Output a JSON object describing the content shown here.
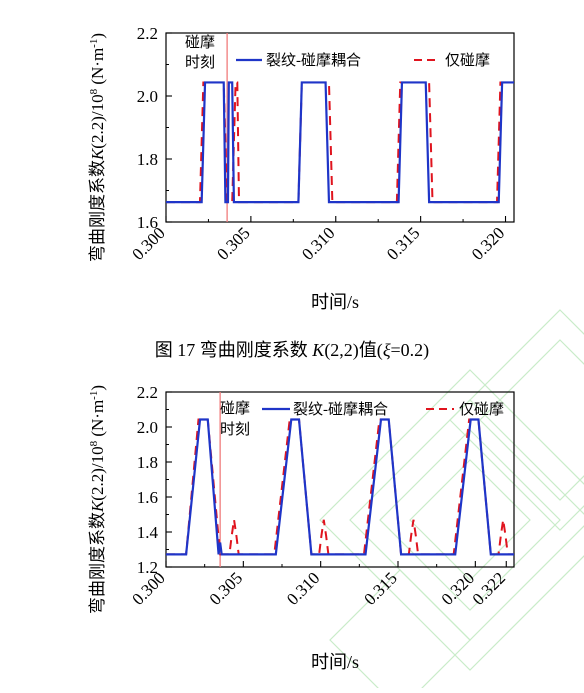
{
  "caption": {
    "prefix": "图 17  弯曲刚度系数 ",
    "k_symbol": "K",
    "k_args": "(2,2)",
    "value_word": "值(",
    "xi_symbol": "ξ",
    "xi_value": "=0.2)"
  },
  "colors": {
    "crack_rub": "#1f35c8",
    "rub_only": "#e0141e",
    "rub_marker": "#f07a7a",
    "watermark": "#c9ecc9"
  },
  "chart_data": [
    {
      "type": "line",
      "ylabel_main": "弯曲刚度系数",
      "ylabel_symbol": "K",
      "ylabel_rest": "(2.2)/10",
      "ylabel_exp": "8",
      "ylabel_unit": " (N·m",
      "ylabel_unit_exp": "-1",
      "ylabel_close": ")",
      "xlabel": "时间/s",
      "xlim": [
        0.3,
        0.3205
      ],
      "ylim": [
        1.6,
        2.2
      ],
      "xticks": [
        "0.300",
        "0.305",
        "0.310",
        "0.315",
        "0.320"
      ],
      "xtick_values": [
        0.3,
        0.305,
        0.31,
        0.315,
        0.32
      ],
      "yticks": [
        "1.6",
        "1.8",
        "2.0",
        "2.2"
      ],
      "ytick_values": [
        1.6,
        1.8,
        2.0,
        2.2
      ],
      "rub_moment_label": [
        "碰摩",
        "时刻"
      ],
      "rub_moment_x": 0.3036,
      "legend": [
        "裂纹-碰摩耦合",
        "仅碰摩"
      ],
      "series": [
        {
          "name": "裂纹-碰摩耦合",
          "style": "solid",
          "points": [
            [
              0.3,
              1.663
            ],
            [
              0.3021,
              1.663
            ],
            [
              0.3023,
              2.043
            ],
            [
              0.3034,
              2.043
            ],
            [
              0.3035,
              1.663
            ],
            [
              0.30365,
              1.663
            ],
            [
              0.3037,
              2.043
            ],
            [
              0.3039,
              2.043
            ],
            [
              0.304,
              1.663
            ],
            [
              0.3078,
              1.663
            ],
            [
              0.308,
              2.043
            ],
            [
              0.3094,
              2.043
            ],
            [
              0.3096,
              1.663
            ],
            [
              0.3137,
              1.663
            ],
            [
              0.3139,
              2.043
            ],
            [
              0.3153,
              2.043
            ],
            [
              0.3155,
              1.663
            ],
            [
              0.3196,
              1.663
            ],
            [
              0.3198,
              2.043
            ],
            [
              0.3205,
              2.043
            ]
          ]
        },
        {
          "name": "仅碰摩",
          "style": "dashed",
          "points": [
            [
              0.3,
              1.663
            ],
            [
              0.302,
              1.663
            ],
            [
              0.3022,
              2.043
            ],
            [
              0.3034,
              2.043
            ],
            [
              0.3036,
              1.663
            ],
            [
              0.3039,
              1.663
            ],
            [
              0.3041,
              2.043
            ],
            [
              0.3042,
              2.043
            ],
            [
              0.3043,
              1.663
            ],
            [
              0.3078,
              1.663
            ],
            [
              0.308,
              2.043
            ],
            [
              0.3096,
              2.043
            ],
            [
              0.3098,
              1.663
            ],
            [
              0.3136,
              1.663
            ],
            [
              0.3138,
              2.043
            ],
            [
              0.3155,
              2.043
            ],
            [
              0.3157,
              1.663
            ],
            [
              0.3195,
              1.663
            ],
            [
              0.3197,
              2.043
            ],
            [
              0.3205,
              2.043
            ]
          ]
        }
      ]
    },
    {
      "type": "line",
      "ylabel_main": "弯曲刚度系数",
      "ylabel_symbol": "K",
      "ylabel_rest": "(2.2)/10",
      "ylabel_exp": "8",
      "ylabel_unit": " (N·m",
      "ylabel_unit_exp": "-1",
      "ylabel_close": ")",
      "xlabel": "时间/s",
      "xlim": [
        0.3,
        0.3225
      ],
      "ylim": [
        1.2,
        2.2
      ],
      "xticks": [
        "0.300",
        "0.305",
        "0.310",
        "0.315",
        "0.320",
        "0.322"
      ],
      "xtick_values": [
        0.3,
        0.305,
        0.31,
        0.315,
        0.32,
        0.322
      ],
      "yticks": [
        "1.2",
        "1.4",
        "1.6",
        "1.8",
        "2.0",
        "2.2"
      ],
      "ytick_values": [
        1.2,
        1.4,
        1.6,
        1.8,
        2.0,
        2.2
      ],
      "rub_moment_label": [
        "碰摩",
        "时刻"
      ],
      "rub_moment_x": 0.3035,
      "legend": [
        "裂纹-碰摩耦合",
        "仅碰摩"
      ],
      "series": [
        {
          "name": "裂纹-碰摩耦合",
          "style": "solid",
          "points": [
            [
              0.3,
              1.272
            ],
            [
              0.3013,
              1.272
            ],
            [
              0.3022,
              2.043
            ],
            [
              0.3027,
              2.043
            ],
            [
              0.3034,
              1.272
            ],
            [
              0.3035,
              1.34
            ],
            [
              0.3036,
              1.272
            ],
            [
              0.3071,
              1.272
            ],
            [
              0.3081,
              2.043
            ],
            [
              0.3086,
              2.043
            ],
            [
              0.3094,
              1.272
            ],
            [
              0.3129,
              1.272
            ],
            [
              0.3139,
              2.043
            ],
            [
              0.3144,
              2.043
            ],
            [
              0.3152,
              1.272
            ],
            [
              0.3187,
              1.272
            ],
            [
              0.3197,
              2.043
            ],
            [
              0.3202,
              2.043
            ],
            [
              0.321,
              1.272
            ],
            [
              0.3225,
              1.272
            ]
          ]
        },
        {
          "name": "仅碰摩",
          "style": "dashed",
          "points": [
            [
              0.3,
              1.272
            ],
            [
              0.3013,
              1.272
            ],
            [
              0.3021,
              2.043
            ],
            [
              0.3027,
              2.043
            ],
            [
              0.3035,
              1.272
            ],
            [
              0.3041,
              1.272
            ],
            [
              0.30425,
              1.38
            ],
            [
              0.3044,
              1.47
            ],
            [
              0.30455,
              1.38
            ],
            [
              0.3047,
              1.272
            ],
            [
              0.307,
              1.272
            ],
            [
              0.308,
              2.043
            ],
            [
              0.3086,
              2.043
            ],
            [
              0.3094,
              1.272
            ],
            [
              0.3099,
              1.272
            ],
            [
              0.31005,
              1.38
            ],
            [
              0.3102,
              1.47
            ],
            [
              0.31035,
              1.38
            ],
            [
              0.3105,
              1.272
            ],
            [
              0.3128,
              1.272
            ],
            [
              0.3138,
              2.043
            ],
            [
              0.3144,
              2.043
            ],
            [
              0.3152,
              1.272
            ],
            [
              0.3157,
              1.272
            ],
            [
              0.31585,
              1.38
            ],
            [
              0.316,
              1.47
            ],
            [
              0.31615,
              1.38
            ],
            [
              0.3163,
              1.272
            ],
            [
              0.3186,
              1.272
            ],
            [
              0.3196,
              2.043
            ],
            [
              0.3202,
              2.043
            ],
            [
              0.321,
              1.272
            ],
            [
              0.3215,
              1.272
            ],
            [
              0.32165,
              1.38
            ],
            [
              0.3218,
              1.47
            ],
            [
              0.32195,
              1.38
            ],
            [
              0.3221,
              1.272
            ],
            [
              0.3225,
              1.272
            ]
          ]
        }
      ]
    }
  ]
}
